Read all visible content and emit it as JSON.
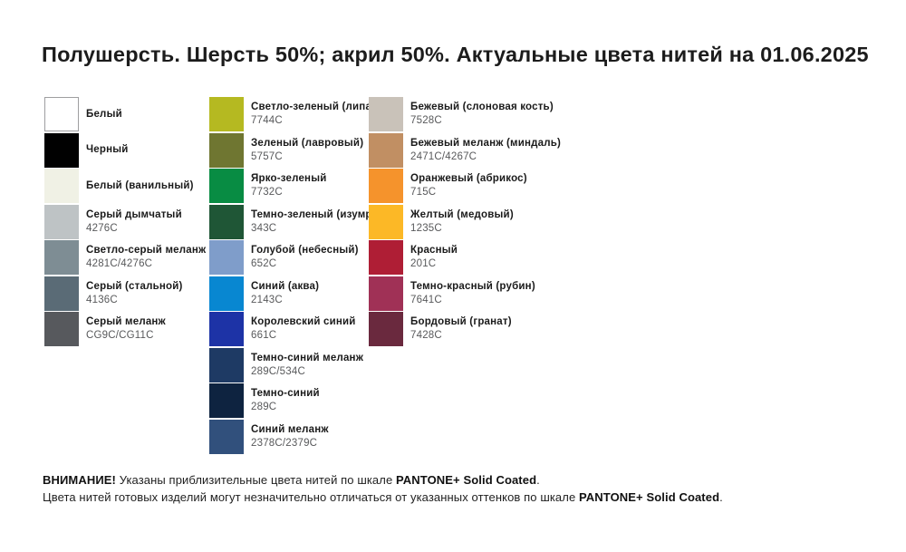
{
  "title": "Полушерсть. Шерсть 50%; акрил 50%. Актуальные цвета нитей на 01.06.2025",
  "columns": [
    {
      "items": [
        {
          "name": "Белый",
          "code": "",
          "hex": "#ffffff",
          "bordered": true
        },
        {
          "name": "Черный",
          "code": "",
          "hex": "#010101",
          "bordered": false
        },
        {
          "name": "Белый (ванильный)",
          "code": "",
          "hex": "#f0f1e5",
          "bordered": false
        },
        {
          "name": "Серый дымчатый",
          "code": "4276C",
          "hex": "#bec3c5",
          "bordered": false
        },
        {
          "name": "Светло-серый меланж",
          "code": "4281C/4276C",
          "hex": "#7e8d94",
          "bordered": false
        },
        {
          "name": "Серый (стальной)",
          "code": "4136C",
          "hex": "#5a6b76",
          "bordered": false
        },
        {
          "name": "Серый меланж",
          "code": "CG9C/CG11C",
          "hex": "#57595d",
          "bordered": false
        }
      ]
    },
    {
      "items": [
        {
          "name": "Светло-зеленый (липа)",
          "code": "7744C",
          "hex": "#b5b921",
          "bordered": false
        },
        {
          "name": "Зеленый (лавровый)",
          "code": "5757C",
          "hex": "#6f7631",
          "bordered": false
        },
        {
          "name": "Ярко-зеленый",
          "code": "7732C",
          "hex": "#088c43",
          "bordered": false
        },
        {
          "name": "Темно-зеленый (изумруд)",
          "code": "343C",
          "hex": "#1f5636",
          "bordered": false
        },
        {
          "name": "Голубой (небесный)",
          "code": "652C",
          "hex": "#7f9dca",
          "bordered": false
        },
        {
          "name": "Синий (аква)",
          "code": "2143C",
          "hex": "#0887d1",
          "bordered": false
        },
        {
          "name": "Королевский синий",
          "code": "661C",
          "hex": "#1d33a6",
          "bordered": false
        },
        {
          "name": "Темно-синий меланж",
          "code": "289C/534C",
          "hex": "#1e3a64",
          "bordered": false
        },
        {
          "name": "Темно-синий",
          "code": "289C",
          "hex": "#0e2340",
          "bordered": false
        },
        {
          "name": "Синий меланж",
          "code": "2378C/2379C",
          "hex": "#31507c",
          "bordered": false
        }
      ]
    },
    {
      "items": [
        {
          "name": "Бежевый (слоновая кость)",
          "code": "7528C",
          "hex": "#c9c2b9",
          "bordered": false
        },
        {
          "name": "Бежевый меланж (миндаль)",
          "code": "2471C/4267C",
          "hex": "#c18f63",
          "bordered": false
        },
        {
          "name": "Оранжевый (абрикос)",
          "code": "715C",
          "hex": "#f5932c",
          "bordered": false
        },
        {
          "name": "Желтый (медовый)",
          "code": "1235C",
          "hex": "#fcb826",
          "bordered": false
        },
        {
          "name": "Красный",
          "code": "201C",
          "hex": "#af1e35",
          "bordered": false
        },
        {
          "name": "Темно-красный (рубин)",
          "code": "7641C",
          "hex": "#a03156",
          "bordered": false
        },
        {
          "name": "Бордовый (гранат)",
          "code": "7428C",
          "hex": "#6a293e",
          "bordered": false
        }
      ]
    }
  ],
  "footer": {
    "attention": "ВНИМАНИЕ!",
    "line1_rest": " Указаны приблизительные цвета нитей по шкале ",
    "line1_bold": "PANTONE+ Solid Coated",
    "line1_end": ".",
    "line2_rest": "Цвета нитей готовых изделий могут незначительно отличаться от указанных оттенков по шкале ",
    "line2_bold": "PANTONE+ Solid Coated",
    "line2_end": "."
  }
}
